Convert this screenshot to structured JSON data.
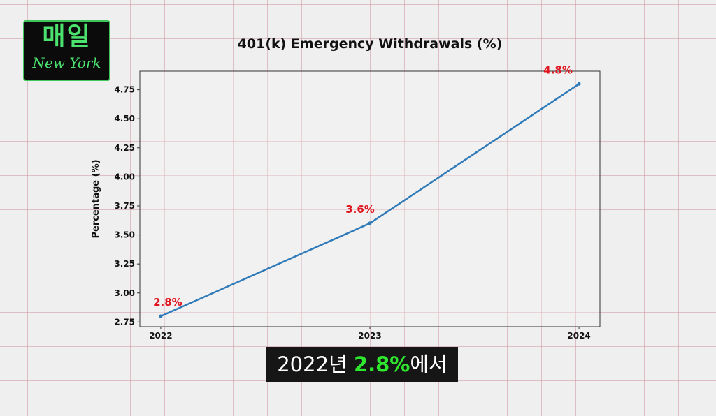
{
  "logo": {
    "korean": "매일",
    "english": "New York"
  },
  "caption": {
    "prefix": "2022년 ",
    "highlight": "2.8%",
    "suffix": "에서",
    "highlight_color": "#2ee82e"
  },
  "chart_data": {
    "type": "line",
    "title": "401(k) Emergency Withdrawals (%)",
    "xlabel": "",
    "ylabel": "Percentage (%)",
    "x": [
      2022,
      2023,
      2024
    ],
    "values": [
      2.8,
      3.6,
      4.8
    ],
    "data_labels": [
      "2.8%",
      "3.6%",
      "4.8%"
    ],
    "xticks": [
      "2022",
      "2023",
      "2024"
    ],
    "yticks": [
      "2.75",
      "3.00",
      "3.25",
      "3.50",
      "3.75",
      "4.00",
      "4.25",
      "4.50",
      "4.75"
    ],
    "xlim": [
      2021.9,
      2024.1
    ],
    "ylim": [
      2.71,
      4.91
    ],
    "line_color": "#2f7ab8",
    "label_color": "#e0141e",
    "grid": false
  }
}
